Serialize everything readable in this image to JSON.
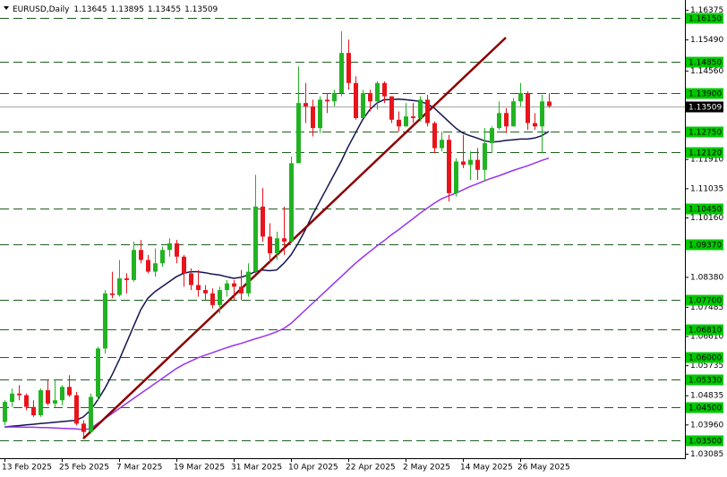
{
  "chart_data": {
    "type": "candlestick",
    "title": "EURUSD,Daily",
    "categories": [
      "13 Feb 2025",
      null,
      null,
      null,
      null,
      null,
      null,
      null,
      "25 Feb 2025",
      null,
      null,
      null,
      null,
      null,
      null,
      null,
      "7 Mar 2025",
      null,
      null,
      null,
      null,
      null,
      null,
      null,
      "19 Mar 2025",
      null,
      null,
      null,
      null,
      null,
      null,
      null,
      "31 Mar 2025",
      null,
      null,
      null,
      null,
      null,
      null,
      null,
      "10 Apr 2025",
      null,
      null,
      null,
      null,
      null,
      null,
      null,
      "22 Apr 2025",
      null,
      null,
      null,
      null,
      null,
      null,
      null,
      "2 May 2025",
      null,
      null,
      null,
      null,
      null,
      null,
      null,
      "14 May 2025",
      null,
      null,
      null,
      null,
      null,
      null,
      null,
      "26 May 2025",
      null,
      null,
      null,
      null
    ],
    "open": [
      1.0405,
      1.0465,
      1.049,
      1.0485,
      1.045,
      1.0425,
      1.05,
      1.046,
      1.047,
      1.051,
      1.0485,
      1.04,
      1.0375,
      1.048,
      1.0625,
      1.079,
      1.0785,
      1.0835,
      1.083,
      1.092,
      1.089,
      1.0855,
      1.088,
      1.092,
      1.094,
      1.09,
      1.085,
      1.0815,
      1.08,
      1.079,
      1.0755,
      1.08,
      1.082,
      1.081,
      1.079,
      1.0855,
      1.105,
      1.096,
      1.091,
      1.0955,
      1.0945,
      1.118,
      1.136,
      1.135,
      1.1285,
      1.137,
      1.1365,
      1.139,
      1.151,
      1.142,
      1.1315,
      1.139,
      1.1365,
      1.142,
      1.138,
      1.131,
      1.129,
      1.132,
      1.1315,
      1.137,
      1.13,
      1.1225,
      1.125,
      1.109,
      1.1185,
      1.1175,
      1.119,
      1.116,
      1.124,
      1.1285,
      1.133,
      1.129,
      1.1365,
      1.139,
      1.13,
      1.129,
      1.13645
    ],
    "high": [
      1.047,
      1.0505,
      1.0515,
      1.049,
      1.047,
      1.0505,
      1.053,
      1.053,
      1.0515,
      1.0545,
      1.0495,
      1.041,
      1.049,
      1.063,
      1.08,
      1.0855,
      1.089,
      1.085,
      1.0945,
      1.095,
      1.0905,
      1.0925,
      1.093,
      1.0955,
      1.095,
      1.0905,
      1.0865,
      1.086,
      1.0815,
      1.0805,
      1.081,
      1.083,
      1.083,
      1.086,
      1.088,
      1.1145,
      1.1105,
      1.1,
      1.0975,
      1.105,
      1.12,
      1.147,
      1.142,
      1.137,
      1.138,
      1.139,
      1.14,
      1.1575,
      1.155,
      1.144,
      1.14,
      1.14,
      1.1425,
      1.1425,
      1.138,
      1.1335,
      1.136,
      1.136,
      1.138,
      1.1385,
      1.1305,
      1.1275,
      1.1265,
      1.1195,
      1.1265,
      1.1215,
      1.1225,
      1.1285,
      1.129,
      1.1365,
      1.1345,
      1.1375,
      1.142,
      1.1395,
      1.133,
      1.1385,
      1.13895
    ],
    "low": [
      1.0395,
      1.045,
      1.047,
      1.044,
      1.042,
      1.042,
      1.0455,
      1.045,
      1.0455,
      1.048,
      1.0395,
      1.036,
      1.037,
      1.047,
      1.061,
      1.0775,
      1.078,
      1.079,
      1.0825,
      1.088,
      1.085,
      1.084,
      1.087,
      1.09,
      1.088,
      1.081,
      1.08,
      1.078,
      1.077,
      1.0745,
      1.073,
      1.078,
      1.077,
      1.077,
      1.078,
      1.085,
      1.0945,
      1.088,
      1.089,
      1.0905,
      1.094,
      1.118,
      1.13,
      1.126,
      1.127,
      1.133,
      1.135,
      1.138,
      1.14,
      1.131,
      1.1315,
      1.1335,
      1.134,
      1.136,
      1.13,
      1.1275,
      1.129,
      1.13,
      1.1305,
      1.129,
      1.121,
      1.1215,
      1.1065,
      1.108,
      1.1165,
      1.113,
      1.113,
      1.1125,
      1.121,
      1.128,
      1.127,
      1.129,
      1.135,
      1.128,
      1.128,
      1.121,
      1.13455
    ],
    "close": [
      1.0465,
      1.049,
      1.0485,
      1.045,
      1.0425,
      1.05,
      1.046,
      1.047,
      1.051,
      1.0485,
      1.04,
      1.0375,
      1.048,
      1.0625,
      1.079,
      1.0785,
      1.0835,
      1.083,
      1.092,
      1.089,
      1.0855,
      1.088,
      1.092,
      1.094,
      1.09,
      1.085,
      1.0815,
      1.08,
      1.079,
      1.0755,
      1.08,
      1.082,
      1.081,
      1.079,
      1.0855,
      1.105,
      1.096,
      1.091,
      1.0955,
      1.0945,
      1.118,
      1.136,
      1.135,
      1.1285,
      1.137,
      1.1365,
      1.139,
      1.151,
      1.142,
      1.1315,
      1.139,
      1.1365,
      1.142,
      1.138,
      1.131,
      1.129,
      1.132,
      1.1315,
      1.137,
      1.13,
      1.1225,
      1.125,
      1.109,
      1.1185,
      1.1175,
      1.119,
      1.116,
      1.124,
      1.1285,
      1.133,
      1.129,
      1.1365,
      1.139,
      1.13,
      1.129,
      1.1365,
      1.13509
    ],
    "up_color": "#22b322",
    "down_color": "#e8141c",
    "series": [
      {
        "color": "#141450",
        "values": [
          1.039,
          1.0392,
          1.0394,
          1.0396,
          1.0398,
          1.04,
          1.0402,
          1.0404,
          1.0406,
          1.0408,
          1.041,
          1.042,
          1.044,
          1.047,
          1.0505,
          1.0545,
          1.059,
          1.064,
          1.069,
          1.074,
          1.0775,
          1.0795,
          1.081,
          1.0825,
          1.084,
          1.085,
          1.0855,
          1.0855,
          1.0852,
          1.0848,
          1.0845,
          1.084,
          1.0835,
          1.0838,
          1.0845,
          1.0855,
          1.086,
          1.0858,
          1.086,
          1.088,
          1.0905,
          1.094,
          1.098,
          1.1025,
          1.1065,
          1.1105,
          1.1145,
          1.1185,
          1.123,
          1.127,
          1.131,
          1.134,
          1.136,
          1.137,
          1.137,
          1.1372,
          1.137,
          1.1368,
          1.1365,
          1.1358,
          1.1345,
          1.1325,
          1.1305,
          1.1285,
          1.127,
          1.1262,
          1.1255,
          1.1247,
          1.1243,
          1.1245,
          1.1248,
          1.125,
          1.1252,
          1.1252,
          1.1255,
          1.1262,
          1.1275
        ]
      },
      {
        "color": "#9933ee",
        "values": [
          1.039,
          1.039,
          1.039,
          1.0389,
          1.0389,
          1.0388,
          1.0388,
          1.0387,
          1.0386,
          1.0385,
          1.0384,
          1.0382,
          1.0385,
          1.04,
          1.0415,
          1.043,
          1.0445,
          1.046,
          1.0475,
          1.049,
          1.0505,
          1.052,
          1.0535,
          1.055,
          1.0565,
          1.0577,
          1.0587,
          1.0597,
          1.0605,
          1.0612,
          1.062,
          1.0627,
          1.0634,
          1.064,
          1.0647,
          1.0654,
          1.066,
          1.0667,
          1.0675,
          1.0685,
          1.07,
          1.072,
          1.074,
          1.076,
          1.078,
          1.08,
          1.082,
          1.084,
          1.086,
          1.088,
          1.0898,
          1.0915,
          1.0932,
          1.0948,
          1.0965,
          1.098,
          1.0997,
          1.1013,
          1.103,
          1.1045,
          1.106,
          1.1073,
          1.1082,
          1.109,
          1.11,
          1.111,
          1.1118,
          1.1127,
          1.1135,
          1.1142,
          1.115,
          1.1158,
          1.1165,
          1.1172,
          1.118,
          1.1188,
          1.1195
        ]
      }
    ],
    "trendline": {
      "color": "#8b0000",
      "x": [
        11,
        70
      ],
      "values": [
        1.0355,
        1.1556
      ]
    },
    "levels": {
      "color": "#1f5f1f",
      "box_color": "#00c800",
      "values": [
        {
          "value": 1.1615,
          "label": "1.16150"
        },
        {
          "value": 1.1485,
          "label": "1.14850"
        },
        {
          "value": 1.139,
          "label": "1.13900"
        },
        {
          "value": 1.1275,
          "label": "1.12750"
        },
        {
          "value": 1.1212,
          "label": "1.12120"
        },
        {
          "value": 1.1045,
          "label": "1.10450"
        },
        {
          "value": 1.0937,
          "label": "1.09370"
        },
        {
          "value": 1.077,
          "label": "1.07700"
        },
        {
          "value": 1.0681,
          "label": "1.06810"
        },
        {
          "value": 1.06,
          "label": "1.06000"
        },
        {
          "value": 1.0533,
          "label": "1.05330"
        },
        {
          "value": 1.045,
          "label": "1.04500"
        },
        {
          "value": 1.035,
          "label": "1.03500"
        }
      ]
    },
    "last_price_color": "#000000",
    "ylim": [
      1.02964,
      1.16686
    ],
    "yticks": [
      1.16375,
      {
        "value": 1.1549,
        "label": "1.15490"
      },
      {
        "value": 1.1456,
        "label": "1.14560"
      },
      {
        "value": 1.1191,
        "label": "1.11910"
      },
      1.11035,
      {
        "value": 1.1016,
        "label": "1.10160"
      },
      {
        "value": 1.0838,
        "label": "1.08380"
      },
      1.07485,
      {
        "value": 1.0661,
        "label": "1.06610"
      },
      1.05735,
      1.04835,
      {
        "value": 1.0396,
        "label": "1.03960"
      },
      1.03085
    ]
  }
}
